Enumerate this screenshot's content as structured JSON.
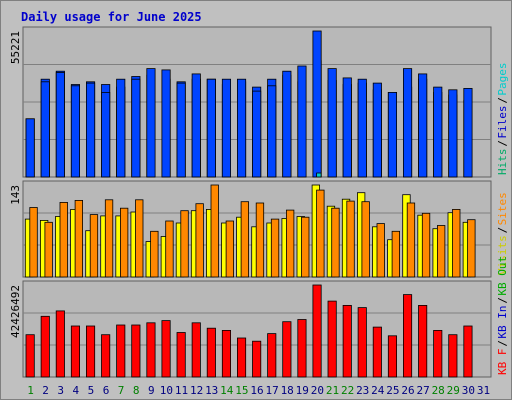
{
  "chart_data": {
    "type": "bar",
    "title": "Daily usage for June 2025",
    "days": [
      "1",
      "2",
      "3",
      "4",
      "5",
      "6",
      "7",
      "8",
      "9",
      "10",
      "11",
      "12",
      "13",
      "14",
      "15",
      "16",
      "17",
      "18",
      "19",
      "20",
      "21",
      "22",
      "23",
      "24",
      "25",
      "26",
      "27",
      "28",
      "29",
      "30",
      "31"
    ],
    "weekend_days": [
      "1",
      "7",
      "8",
      "14",
      "15",
      "21",
      "22",
      "28",
      "29"
    ],
    "colors": {
      "background": "#c0c0c0",
      "panel": "#b8b8b8",
      "grid": "#808080",
      "title": "#0000cc",
      "hits": "#0044ff",
      "files": "#0044ff",
      "pages": "#00cccc",
      "visits": "#ffff00",
      "sites": "#ff8800",
      "kb_in": "#0000cc",
      "kb_out": "#00aa00",
      "kb_f": "#ff0000",
      "weekday_label": "#000080",
      "weekend_label": "#008000"
    },
    "panels": [
      {
        "id": "hits-files-pages",
        "y_label": "55221",
        "ymax": 55221,
        "legend": [
          {
            "text": "Hits",
            "color": "#00aa66"
          },
          {
            "text": "Files",
            "color": "#0000cc"
          },
          {
            "text": "Pages",
            "color": "#00cccc"
          }
        ],
        "series": [
          {
            "name": "Hits",
            "color": "#0044ff",
            "values": [
              22000,
              37000,
              40000,
              35000,
              36000,
              35000,
              34000,
              38000,
              38500,
              37000,
              36000,
              37000,
              37000,
              35000,
              36000,
              34000,
              37000,
              38500,
              36000,
              44000,
              36500,
              35000,
              35500,
              33000,
              32000,
              34000,
              37000,
              32000,
              31000,
              29000,
              0
            ]
          },
          {
            "name": "Files",
            "color": "#0044ff",
            "values": [
              22000,
              36000,
              39500,
              34500,
              35500,
              32000,
              37000,
              37000,
              41000,
              40500,
              35500,
              39000,
              37000,
              37000,
              37000,
              32500,
              34500,
              40000,
              42000,
              55221,
              41000,
              37500,
              37000,
              35500,
              32000,
              41000,
              39000,
              34000,
              33000,
              33500,
              0
            ]
          },
          {
            "name": "Pages",
            "color": "#00cccc",
            "values": [
              0,
              0,
              0,
              0,
              0,
              0,
              0,
              0,
              0,
              0,
              0,
              0,
              0,
              0,
              0,
              0,
              0,
              0,
              0,
              1500,
              0,
              0,
              0,
              0,
              0,
              0,
              0,
              0,
              0,
              0,
              0
            ]
          }
        ]
      },
      {
        "id": "visits-sites",
        "y_label": "143",
        "ymax": 143,
        "legend": [
          {
            "text": "Visits",
            "color": "#cccc00"
          },
          {
            "text": "Sites",
            "color": "#ff8800"
          }
        ],
        "series": [
          {
            "name": "Visits",
            "color": "#ffff00",
            "values": [
              90,
              88,
              94,
              105,
              72,
              95,
              95,
              101,
              55,
              63,
              84,
              103,
              105,
              84,
              93,
              78,
              84,
              91,
              94,
              143,
              110,
              121,
              131,
              78,
              58,
              128,
              96,
              75,
              100,
              85,
              0
            ]
          },
          {
            "name": "Sites",
            "color": "#ff8800",
            "values": [
              108,
              85,
              116,
              119,
              97,
              120,
              107,
              120,
              71,
              87,
              103,
              114,
              143,
              87,
              117,
              115,
              90,
              104,
              93,
              135,
              107,
              118,
              117,
              83,
              71,
              115,
              99,
              80,
              105,
              89,
              0
            ]
          }
        ]
      },
      {
        "id": "kb",
        "y_label": "42426492",
        "ymax": 42426492,
        "legend": [
          {
            "text": "KB F",
            "color": "#ff0000"
          },
          {
            "text": "KB In",
            "color": "#0000cc"
          },
          {
            "text": "KB Out",
            "color": "#00aa00"
          }
        ],
        "series": [
          {
            "name": "KB F",
            "color": "#ff0000",
            "values": [
              19500000,
              28000000,
              30500000,
              23500000,
              23500000,
              19500000,
              24000000,
              24000000,
              25000000,
              26000000,
              20500000,
              25000000,
              22500000,
              21500000,
              18000000,
              16500000,
              20000000,
              25500000,
              26500000,
              42426492,
              35000000,
              33000000,
              32000000,
              23000000,
              19000000,
              38000000,
              33000000,
              21500000,
              19500000,
              23500000,
              0
            ]
          }
        ]
      }
    ]
  }
}
